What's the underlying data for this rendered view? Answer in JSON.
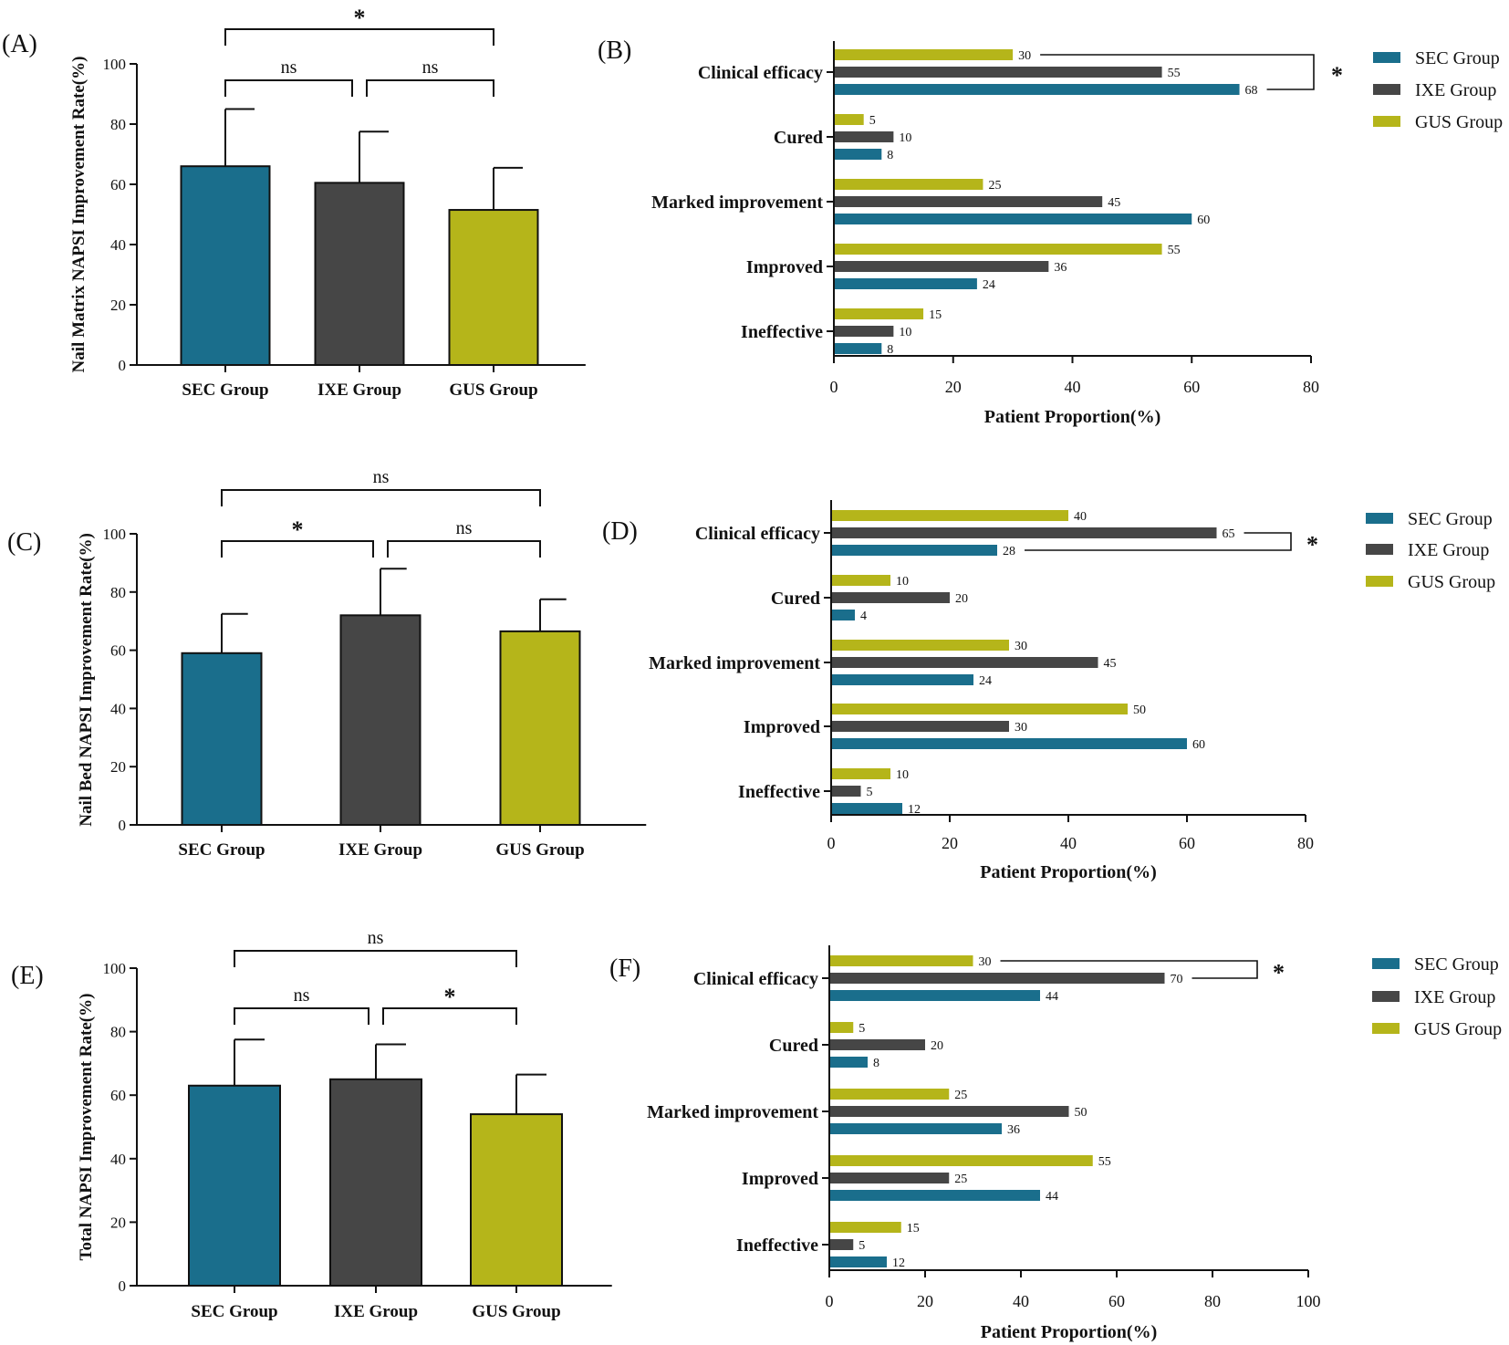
{
  "colors": {
    "sec": "#1a6e8c",
    "ixe": "#464646",
    "gus": "#b5b51a",
    "axis": "#111111"
  },
  "chart_data": [
    {
      "panel": "(A)",
      "type": "bar",
      "ylabel": "Nail Matrix NAPSI Improvement Rate(%)",
      "categories": [
        "SEC Group",
        "IXE Group",
        "GUS Group"
      ],
      "values": [
        66,
        60.5,
        51.5
      ],
      "errors": [
        19,
        17,
        14
      ],
      "ylim": [
        0,
        100
      ],
      "yticks": [
        "0",
        "20",
        "40",
        "60",
        "80",
        "100"
      ],
      "comparisons": [
        {
          "from": 0,
          "to": 1,
          "label": "ns"
        },
        {
          "from": 1,
          "to": 2,
          "label": "ns"
        },
        {
          "from": 0,
          "to": 2,
          "label": "*"
        }
      ]
    },
    {
      "panel": "(B)",
      "type": "bar",
      "orientation": "horizontal",
      "xlabel": "Patient Proportion(%)",
      "categories": [
        "Clinical efficacy",
        "Cured",
        "Marked improvement",
        "Improved",
        "Ineffective"
      ],
      "series": [
        {
          "name": "GUS Group",
          "values": [
            30,
            5,
            25,
            55,
            15
          ]
        },
        {
          "name": "IXE Group",
          "values": [
            55,
            10,
            45,
            36,
            10
          ]
        },
        {
          "name": "SEC Group",
          "values": [
            68,
            8,
            60,
            24,
            8
          ]
        }
      ],
      "legend": [
        "SEC Group",
        "IXE Group",
        "GUS Group"
      ],
      "xlim": [
        0,
        80
      ],
      "xticks": [
        "0",
        "20",
        "40",
        "60",
        "80"
      ],
      "bracket": {
        "series_from": 0,
        "series_to": 2,
        "label": "*"
      }
    },
    {
      "panel": "(C)",
      "type": "bar",
      "ylabel": "Nail Bed NAPSI Improvement Rate(%)",
      "categories": [
        "SEC Group",
        "IXE Group",
        "GUS Group"
      ],
      "values": [
        59,
        72,
        66.5
      ],
      "errors": [
        13.5,
        16,
        11
      ],
      "ylim": [
        0,
        100
      ],
      "yticks": [
        "0",
        "20",
        "40",
        "60",
        "80",
        "100"
      ],
      "comparisons": [
        {
          "from": 0,
          "to": 1,
          "label": "*"
        },
        {
          "from": 1,
          "to": 2,
          "label": "ns"
        },
        {
          "from": 0,
          "to": 2,
          "label": "ns"
        }
      ]
    },
    {
      "panel": "(D)",
      "type": "bar",
      "orientation": "horizontal",
      "xlabel": "Patient Proportion(%)",
      "categories": [
        "Clinical efficacy",
        "Cured",
        "Marked improvement",
        "Improved",
        "Ineffective"
      ],
      "series": [
        {
          "name": "GUS Group",
          "values": [
            40,
            10,
            30,
            50,
            10
          ]
        },
        {
          "name": "IXE Group",
          "values": [
            65,
            20,
            45,
            30,
            5
          ]
        },
        {
          "name": "SEC Group",
          "values": [
            28,
            4,
            24,
            60,
            12
          ]
        }
      ],
      "legend": [
        "SEC Group",
        "IXE Group",
        "GUS Group"
      ],
      "xlim": [
        0,
        80
      ],
      "xticks": [
        "0",
        "20",
        "40",
        "60",
        "80"
      ],
      "bracket": {
        "series_from": 1,
        "series_to": 2,
        "label": "*"
      }
    },
    {
      "panel": "(E)",
      "type": "bar",
      "ylabel": "Total NAPSI Improvement Rate(%)",
      "categories": [
        "SEC Group",
        "IXE Group",
        "GUS Group"
      ],
      "values": [
        63,
        65,
        54
      ],
      "errors": [
        14.5,
        11,
        12.5
      ],
      "ylim": [
        0,
        100
      ],
      "yticks": [
        "0",
        "20",
        "40",
        "60",
        "80",
        "100"
      ],
      "comparisons": [
        {
          "from": 0,
          "to": 1,
          "label": "ns"
        },
        {
          "from": 1,
          "to": 2,
          "label": "*"
        },
        {
          "from": 0,
          "to": 2,
          "label": "ns"
        }
      ]
    },
    {
      "panel": "(F)",
      "type": "bar",
      "orientation": "horizontal",
      "xlabel": "Patient Proportion(%)",
      "categories": [
        "Clinical efficacy",
        "Cured",
        "Marked improvement",
        "Improved",
        "Ineffective"
      ],
      "series": [
        {
          "name": "GUS Group",
          "values": [
            30,
            5,
            25,
            55,
            15
          ]
        },
        {
          "name": "IXE Group",
          "values": [
            70,
            20,
            50,
            25,
            5
          ]
        },
        {
          "name": "SEC Group",
          "values": [
            44,
            8,
            36,
            44,
            12
          ]
        }
      ],
      "legend": [
        "SEC Group",
        "IXE Group",
        "GUS Group"
      ],
      "xlim": [
        0,
        100
      ],
      "xticks": [
        "0",
        "20",
        "40",
        "60",
        "80",
        "100"
      ],
      "bracket": {
        "series_from": 0,
        "series_to": 1,
        "label": "*"
      }
    }
  ]
}
